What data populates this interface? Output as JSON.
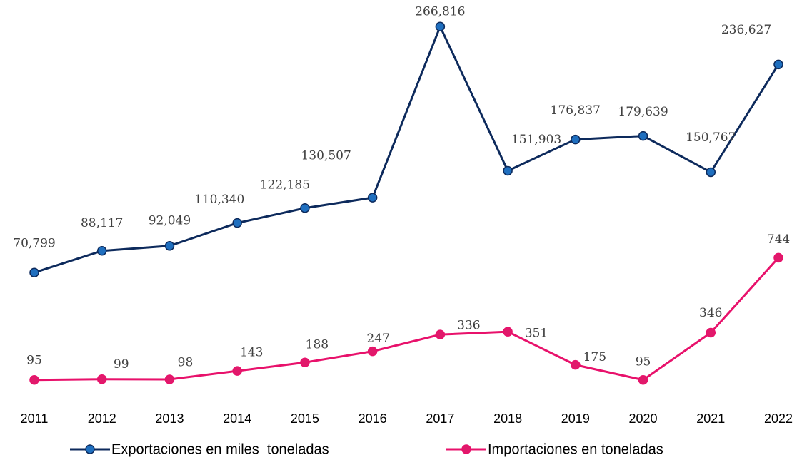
{
  "chart_data": {
    "type": "line",
    "categories": [
      "2011",
      "2012",
      "2013",
      "2014",
      "2015",
      "2016",
      "2017",
      "2018",
      "2019",
      "2020",
      "2021",
      "2022"
    ],
    "series": [
      {
        "name": "Exportaciones en miles  toneladas",
        "color": "#0d2a5c",
        "marker_color": "#1f6fbf",
        "values": [
          70799,
          88117,
          92049,
          110340,
          122185,
          130507,
          266816,
          151903,
          176837,
          179639,
          150767,
          236627
        ],
        "value_labels": [
          "70,799",
          "88,117",
          "92,049",
          "110,340",
          "122,185",
          "130,507",
          "266,816",
          "151,903",
          "176,837",
          "179,639",
          "150,767",
          "236,627"
        ]
      },
      {
        "name": "Importaciones en toneladas",
        "color": "#e8116b",
        "marker_color": "#e01a6b",
        "axis": "y2",
        "values": [
          95,
          99,
          98,
          143,
          188,
          247,
          336,
          351,
          175,
          95,
          346,
          744
        ]
      }
    ],
    "ylim": [
      -20000,
      280000
    ],
    "y2lim": [
      60,
      2060
    ],
    "legend": "bottom"
  }
}
